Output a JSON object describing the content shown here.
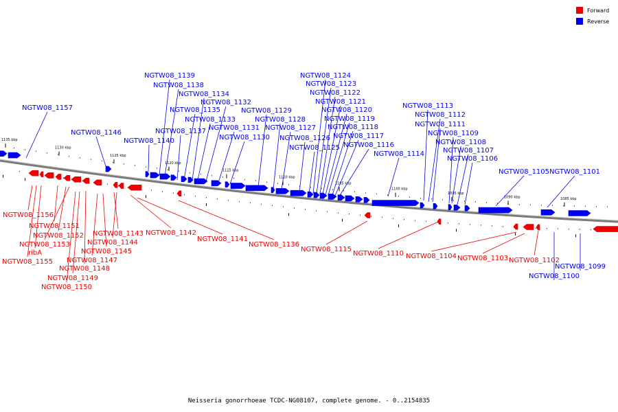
{
  "legend": {
    "forward": {
      "label": "Forward",
      "color": "#ee0000"
    },
    "reverse": {
      "label": "Reverse",
      "color": "#0000ee"
    }
  },
  "caption": "Neisseria gonorrhoeae TCDC-NG08107, complete genome. - 0..2154835",
  "kbp_ticks": [
    "1135 kbp",
    "1130 kbp",
    "1125 kbp",
    "1120 kbp",
    "1115 kbp",
    "1110 kbp",
    "1105 kbp",
    "1100 kbp",
    "1095 kbp",
    "1090 kbp",
    "1085 kbp"
  ],
  "reverse_labels": [
    "NGTW08_1157",
    "NGTW08_1146",
    "NGTW08_1140",
    "NGTW08_1139",
    "NGTW08_1138",
    "NGTW08_1137",
    "NGTW08_1135",
    "NGTW08_1134",
    "NGTW08_1133",
    "NGTW08_1132",
    "NGTW08_1131",
    "NGTW08_1130",
    "NGTW08_1129",
    "NGTW08_1128",
    "NGTW08_1127",
    "NGTW08_1126",
    "NGTW08_1125",
    "NGTW08_1124",
    "NGTW08_1123",
    "NGTW08_1122",
    "NGTW08_1121",
    "NGTW08_1120",
    "NGTW08_1119",
    "NGTW08_1118",
    "NGTW08_1117",
    "NGTW08_1116",
    "NGTW08_1114",
    "NGTW08_1113",
    "NGTW08_1112",
    "NGTW08_1111",
    "NGTW08_1109",
    "NGTW08_1108",
    "NGTW08_1107",
    "NGTW08_1106",
    "NGTW08_1105",
    "NGTW08_1101",
    "NGTW08_1100",
    "NGTW08_1099"
  ],
  "forward_labels": [
    "NGTW08_1156",
    "NGTW08_1151",
    "NGTW08_1152",
    "NGTW08_1153",
    "ribA",
    "NGTW08_1155",
    "NGTW08_1143",
    "NGTW08_1144",
    "NGTW08_1145",
    "NGTW08_1147",
    "NGTW08_1148",
    "NGTW08_1149",
    "NGTW08_1150",
    "NGTW08_1142",
    "NGTW08_1141",
    "NGTW08_1136",
    "NGTW08_1115",
    "NGTW08_1110",
    "NGTW08_1104",
    "NGTW08_1103",
    "NGTW08_1102"
  ]
}
